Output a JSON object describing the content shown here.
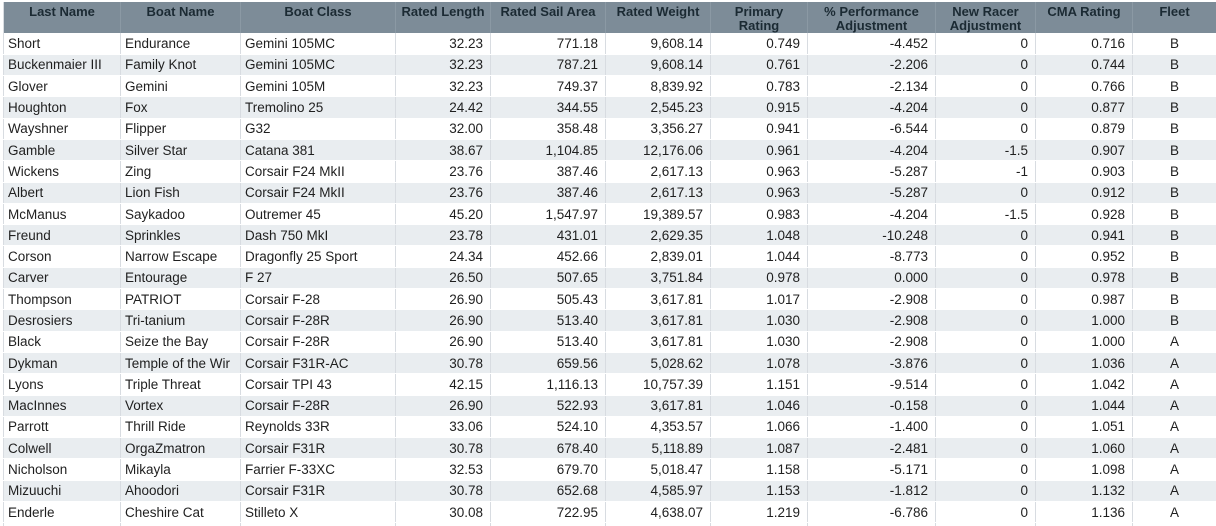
{
  "table": {
    "columns": [
      {
        "label": "Last Name",
        "align": "left"
      },
      {
        "label": "Boat Name",
        "align": "left"
      },
      {
        "label": "Boat Class",
        "align": "left"
      },
      {
        "label": "Rated Length",
        "align": "right"
      },
      {
        "label": "Rated Sail Area",
        "align": "right"
      },
      {
        "label": "Rated Weight",
        "align": "right"
      },
      {
        "label": "Primary Rating",
        "align": "right"
      },
      {
        "label": "% Performance Adjustment",
        "align": "right"
      },
      {
        "label": "New Racer Adjustment",
        "align": "right"
      },
      {
        "label": "CMA Rating",
        "align": "right"
      },
      {
        "label": "Fleet",
        "align": "center"
      }
    ],
    "rows": [
      [
        "Short",
        "Endurance",
        "Gemini 105MC",
        "32.23",
        "771.18",
        "9,608.14",
        "0.749",
        "-4.452",
        "0",
        "0.716",
        "B"
      ],
      [
        "Buckenmaier III",
        "Family Knot",
        "Gemini 105MC",
        "32.23",
        "787.21",
        "9,608.14",
        "0.761",
        "-2.206",
        "0",
        "0.744",
        "B"
      ],
      [
        "Glover",
        "Gemini",
        "Gemini 105M",
        "32.23",
        "749.37",
        "8,839.92",
        "0.783",
        "-2.134",
        "0",
        "0.766",
        "B"
      ],
      [
        "Houghton",
        "Fox",
        "Tremolino 25",
        "24.42",
        "344.55",
        "2,545.23",
        "0.915",
        "-4.204",
        "0",
        "0.877",
        "B"
      ],
      [
        "Wayshner",
        "Flipper",
        "G32",
        "32.00",
        "358.48",
        "3,356.27",
        "0.941",
        "-6.544",
        "0",
        "0.879",
        "B"
      ],
      [
        "Gamble",
        "Silver Star",
        "Catana 381",
        "38.67",
        "1,104.85",
        "12,176.06",
        "0.961",
        "-4.204",
        "-1.5",
        "0.907",
        "B"
      ],
      [
        "Wickens",
        "Zing",
        "Corsair F24 MkII",
        "23.76",
        "387.46",
        "2,617.13",
        "0.963",
        "-5.287",
        "-1",
        "0.903",
        "B"
      ],
      [
        "Albert",
        "Lion Fish",
        "Corsair F24 MkII",
        "23.76",
        "387.46",
        "2,617.13",
        "0.963",
        "-5.287",
        "0",
        "0.912",
        "B"
      ],
      [
        "McManus",
        "Saykadoo",
        "Outremer 45",
        "45.20",
        "1,547.97",
        "19,389.57",
        "0.983",
        "-4.204",
        "-1.5",
        "0.928",
        "B"
      ],
      [
        "Freund",
        "Sprinkles",
        "Dash 750 MkI",
        "23.78",
        "431.01",
        "2,629.35",
        "1.048",
        "-10.248",
        "0",
        "0.941",
        "B"
      ],
      [
        "Corson",
        "Narrow Escape",
        "Dragonfly 25 Sport",
        "24.34",
        "452.66",
        "2,839.01",
        "1.044",
        "-8.773",
        "0",
        "0.952",
        "B"
      ],
      [
        "Carver",
        "Entourage",
        "F 27",
        "26.50",
        "507.65",
        "3,751.84",
        "0.978",
        "0.000",
        "0",
        "0.978",
        "B"
      ],
      [
        "Thompson",
        "PATRIOT",
        "Corsair F-28",
        "26.90",
        "505.43",
        "3,617.81",
        "1.017",
        "-2.908",
        "0",
        "0.987",
        "B"
      ],
      [
        "Desrosiers",
        "Tri-tanium",
        "Corsair F-28R",
        "26.90",
        "513.40",
        "3,617.81",
        "1.030",
        "-2.908",
        "0",
        "1.000",
        "B"
      ],
      [
        "Black",
        "Seize the Bay",
        "Corsair F-28R",
        "26.90",
        "513.40",
        "3,617.81",
        "1.030",
        "-2.908",
        "0",
        "1.000",
        "A"
      ],
      [
        "Dykman",
        "Temple of the Wir",
        "Corsair F31R-AC",
        "30.78",
        "659.56",
        "5,028.62",
        "1.078",
        "-3.876",
        "0",
        "1.036",
        "A"
      ],
      [
        "Lyons",
        "Triple Threat",
        "Corsair TPI 43",
        "42.15",
        "1,116.13",
        "10,757.39",
        "1.151",
        "-9.514",
        "0",
        "1.042",
        "A"
      ],
      [
        "MacInnes",
        "Vortex",
        "Corsair F-28R",
        "26.90",
        "522.93",
        "3,617.81",
        "1.046",
        "-0.158",
        "0",
        "1.044",
        "A"
      ],
      [
        "Parrott",
        "Thrill Ride",
        "Reynolds 33R",
        "33.06",
        "524.10",
        "4,353.57",
        "1.066",
        "-1.400",
        "0",
        "1.051",
        "A"
      ],
      [
        "Colwell",
        "OrgaZmatron",
        "Corsair F31R",
        "30.78",
        "678.40",
        "5,118.89",
        "1.087",
        "-2.481",
        "0",
        "1.060",
        "A"
      ],
      [
        "Nicholson",
        "Mikayla",
        "Farrier F-33XC",
        "32.53",
        "679.70",
        "5,018.47",
        "1.158",
        "-5.171",
        "0",
        "1.098",
        "A"
      ],
      [
        "Mizuuchi",
        "Ahoodori",
        "Corsair F31R",
        "30.78",
        "652.68",
        "4,585.97",
        "1.153",
        "-1.812",
        "0",
        "1.132",
        "A"
      ],
      [
        "Enderle",
        "Cheshire Cat",
        "Stilleto X",
        "30.08",
        "722.95",
        "4,638.07",
        "1.219",
        "-6.786",
        "0",
        "1.136",
        "A"
      ]
    ]
  },
  "colors": {
    "header_bg": "#7d8c98",
    "header_text": "#1b2a33",
    "row_bg": "#ffffff",
    "row_alt_bg": "#e9edf0",
    "grid_line": "#d8dce1",
    "text": "#1f1f1f"
  }
}
